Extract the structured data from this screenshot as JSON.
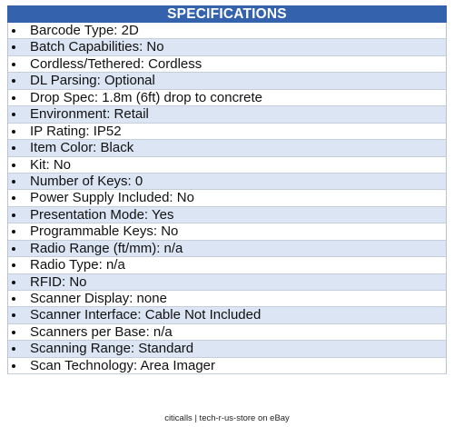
{
  "header": {
    "title": "SPECIFICATIONS"
  },
  "items": [
    "Barcode Type: 2D",
    "Batch Capabilities: No",
    "Cordless/Tethered: Cordless",
    "DL Parsing: Optional",
    "Drop Spec: 1.8m (6ft) drop to concrete",
    "Environment: Retail",
    "IP Rating: IP52",
    "Item Color: Black",
    "Kit: No",
    "Number of Keys: 0",
    "Power Supply Included: No",
    "Presentation Mode: Yes",
    "Programmable Keys: No",
    "Radio Range (ft/mm): n/a",
    "Radio Type: n/a",
    "RFID: No",
    "Scanner Display: none",
    "Scanner Interface: Cable Not Included",
    "Scanners per Base: n/a",
    "Scanning Range: Standard",
    "Scan Technology: Area Imager"
  ],
  "footer": "citicalls | tech-r-us-store on eBay"
}
